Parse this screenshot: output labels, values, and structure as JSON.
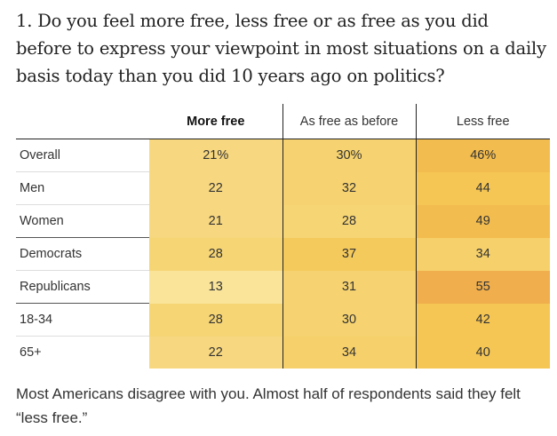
{
  "question": "1. Do you feel more free, less free or as free as you did before to express your viewpoint in most situations on a daily basis today than you did 10 years ago on politics?",
  "table": {
    "columns": [
      "",
      "More free",
      "As free as before",
      "Less free"
    ],
    "rows": [
      {
        "label": "Overall",
        "values": [
          "21%",
          "30%",
          "46%"
        ],
        "colors": [
          "#f7d77f",
          "#f6d370",
          "#f3bc4e"
        ]
      },
      {
        "label": "Men",
        "values": [
          "22",
          "32",
          "44"
        ],
        "colors": [
          "#f7d77f",
          "#f6d370",
          "#f5c654"
        ]
      },
      {
        "label": "Women",
        "values": [
          "21",
          "28",
          "49"
        ],
        "colors": [
          "#f7d77f",
          "#f6d575",
          "#f3bc4e"
        ]
      },
      {
        "label": "Democrats",
        "values": [
          "28",
          "37",
          "34"
        ],
        "colors": [
          "#f6d575",
          "#f5ca5c",
          "#f6d06a"
        ]
      },
      {
        "label": "Republicans",
        "values": [
          "13",
          "31",
          "55"
        ],
        "colors": [
          "#f9e49a",
          "#f6d370",
          "#f0ae4c"
        ]
      },
      {
        "label": "18-34",
        "values": [
          "28",
          "30",
          "42"
        ],
        "colors": [
          "#f6d575",
          "#f6d370",
          "#f5c654"
        ]
      },
      {
        "label": "65+",
        "values": [
          "22",
          "34",
          "40"
        ],
        "colors": [
          "#f7d77f",
          "#f6d06a",
          "#f5c654"
        ]
      }
    ]
  },
  "caption": "Most Americans disagree with you. Almost half of respondents said they felt “less free.”"
}
